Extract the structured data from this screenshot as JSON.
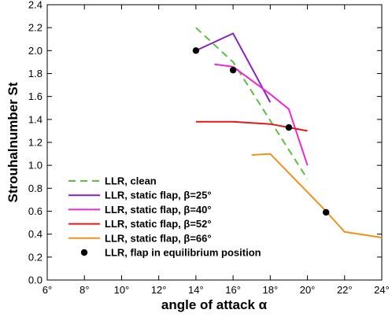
{
  "chart_data": {
    "type": "line",
    "xlabel": "angle of attack α",
    "ylabel": "Strouhalnumber St",
    "xlim": [
      6,
      24
    ],
    "ylim": [
      0.0,
      2.4
    ],
    "x_ticks": [
      6,
      8,
      10,
      12,
      14,
      16,
      18,
      20,
      22,
      24
    ],
    "x_tick_labels": [
      "6°",
      "8°",
      "10°",
      "12°",
      "14°",
      "16°",
      "18°",
      "20°",
      "22°",
      "24°"
    ],
    "y_ticks": [
      0.0,
      0.2,
      0.4,
      0.6,
      0.8,
      1.0,
      1.2,
      1.4,
      1.6,
      1.8,
      2.0,
      2.2,
      2.4
    ],
    "y_tick_labels": [
      "0.0",
      "0.2",
      "0.4",
      "0.6",
      "0.8",
      "1.0",
      "1.2",
      "1.4",
      "1.6",
      "1.8",
      "2.0",
      "2.2",
      "2.4"
    ],
    "grid": false,
    "legend_position": "bottom-left",
    "series": [
      {
        "name": "LLR, clean",
        "color": "#5cbf3c",
        "dash": true,
        "marker": false,
        "points": [
          [
            14.0,
            2.2
          ],
          [
            16.0,
            1.9
          ],
          [
            20.0,
            0.88
          ]
        ]
      },
      {
        "name": "LLR, static flap, β=25°",
        "color": "#8a1fc4",
        "dash": false,
        "marker": false,
        "points": [
          [
            14.0,
            2.0
          ],
          [
            16.0,
            2.15
          ],
          [
            16.9,
            1.88
          ],
          [
            18.0,
            1.55
          ]
        ]
      },
      {
        "name": "LLR, static flap, β=40°",
        "color": "#f026d0",
        "dash": false,
        "marker": false,
        "points": [
          [
            15.0,
            1.88
          ],
          [
            16.0,
            1.86
          ],
          [
            18.0,
            1.62
          ],
          [
            19.0,
            1.49
          ],
          [
            20.0,
            1.0
          ]
        ]
      },
      {
        "name": "LLR, static flap, β=52°",
        "color": "#e01a1a",
        "dash": false,
        "marker": false,
        "points": [
          [
            14.0,
            1.38
          ],
          [
            16.0,
            1.38
          ],
          [
            18.0,
            1.36
          ],
          [
            19.0,
            1.33
          ],
          [
            20.0,
            1.3
          ]
        ]
      },
      {
        "name": "LLR, static flap, β=66°",
        "color": "#f0901e",
        "dash": false,
        "marker": false,
        "points": [
          [
            17.0,
            1.09
          ],
          [
            18.0,
            1.1
          ],
          [
            21.0,
            0.6
          ],
          [
            22.0,
            0.42
          ],
          [
            24.0,
            0.37
          ]
        ]
      },
      {
        "name": "LLR, flap in equilibrium position",
        "color": "#000000",
        "dash": false,
        "marker": true,
        "points": [
          [
            14.0,
            2.0
          ],
          [
            16.0,
            1.83
          ],
          [
            19.0,
            1.33
          ],
          [
            21.0,
            0.59
          ]
        ]
      }
    ]
  }
}
